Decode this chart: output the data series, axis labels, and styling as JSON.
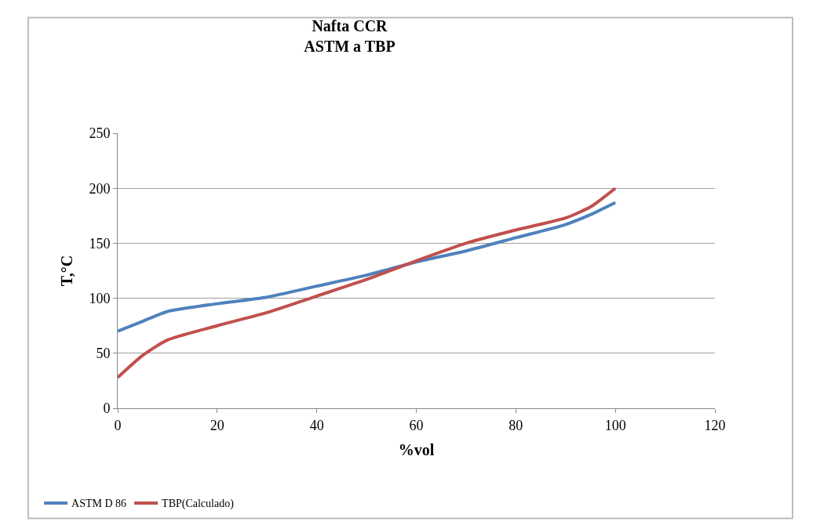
{
  "chart_data": {
    "type": "line",
    "title": "Nafta CCR\nASTM a TBP",
    "xlabel": "%vol",
    "ylabel": "T,°C",
    "x": [
      0,
      5,
      10,
      20,
      30,
      40,
      50,
      60,
      70,
      80,
      90,
      95,
      100
    ],
    "series": [
      {
        "name": "ASTM D 86",
        "color": "#4f81bd",
        "values": [
          70,
          79,
          88,
          95,
          101,
          111,
          121,
          133,
          143,
          155,
          167,
          176,
          187
        ]
      },
      {
        "name": "TBP(Calculado)",
        "color": "#c0504d",
        "values": [
          28,
          48,
          62,
          75,
          87,
          102,
          117,
          134,
          150,
          162,
          173,
          183,
          200
        ]
      }
    ],
    "xlim": [
      0,
      120
    ],
    "xticks": [
      0,
      20,
      40,
      60,
      80,
      100,
      120
    ],
    "ylim": [
      0,
      250
    ],
    "yticks": [
      0,
      50,
      100,
      150,
      200,
      250
    ],
    "grid": "y",
    "legend": "bottom left",
    "marker": "none",
    "line_style": "solid"
  }
}
